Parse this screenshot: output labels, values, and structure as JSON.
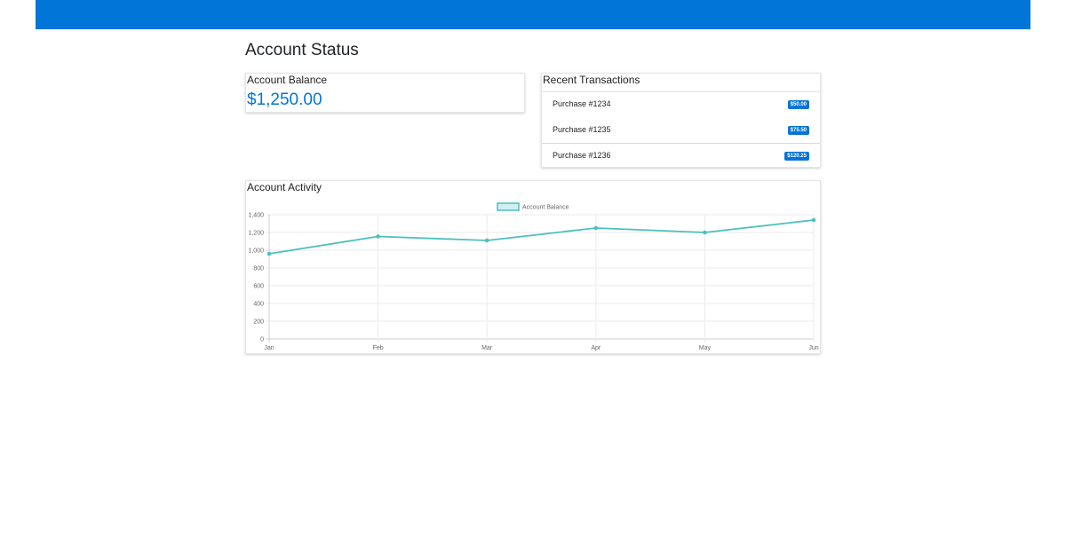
{
  "header": {
    "color": "#0275d8"
  },
  "page": {
    "title": "Account Status"
  },
  "balance_card": {
    "title": "Account Balance",
    "value": "$1,250.00",
    "value_color": "#0275d8"
  },
  "transactions_card": {
    "title": "Recent Transactions",
    "items": [
      {
        "label": "Purchase #1234",
        "amount": "$50.00"
      },
      {
        "label": "Purchase #1235",
        "amount": "$75.50"
      },
      {
        "label": "Purchase #1236",
        "amount": "$120.25"
      }
    ]
  },
  "activity_card": {
    "title": "Account Activity"
  },
  "chart_data": {
    "type": "line",
    "title": "",
    "categories": [
      "Jan",
      "Feb",
      "Mar",
      "Apr",
      "May",
      "Jun"
    ],
    "series": [
      {
        "name": "Account Balance",
        "values": [
          960,
          1155,
          1110,
          1250,
          1200,
          1340
        ],
        "color": "#4bc0c0"
      }
    ],
    "ylim": [
      0,
      1400
    ],
    "yticks": [
      0,
      200,
      400,
      600,
      800,
      1000,
      1200,
      1400
    ],
    "ytick_labels": [
      "0",
      "200",
      "400",
      "600",
      "800",
      "1,000",
      "1,200",
      "1,400"
    ],
    "grid": true,
    "legend": "top-center"
  }
}
